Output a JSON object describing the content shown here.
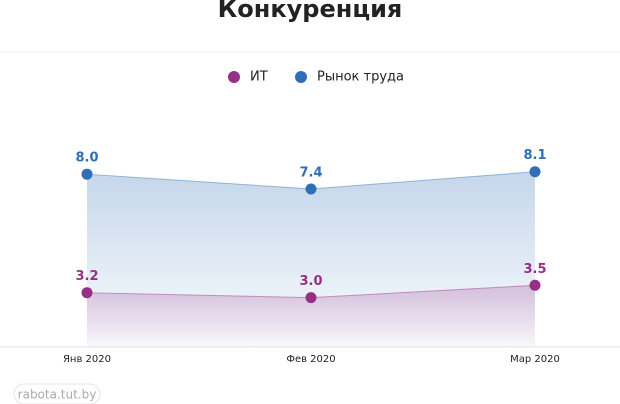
{
  "chart_data": {
    "type": "line",
    "title": "Конкуренция",
    "categories": [
      "Янв 2020",
      "Фев 2020",
      "Мар 2020"
    ],
    "series": [
      {
        "name": "ИТ",
        "color": "#962f86",
        "values": [
          3.2,
          3.0,
          3.5
        ],
        "value_labels": [
          "3.2",
          "3.0",
          "3.5"
        ]
      },
      {
        "name": "Рынок труда",
        "color": "#2f6fb7",
        "values": [
          8.0,
          7.4,
          8.1
        ],
        "value_labels": [
          "8.0",
          "7.4",
          "8.1"
        ]
      }
    ],
    "ylim": [
      1,
      10.6
    ],
    "watermark": "rabota.tut.by"
  }
}
